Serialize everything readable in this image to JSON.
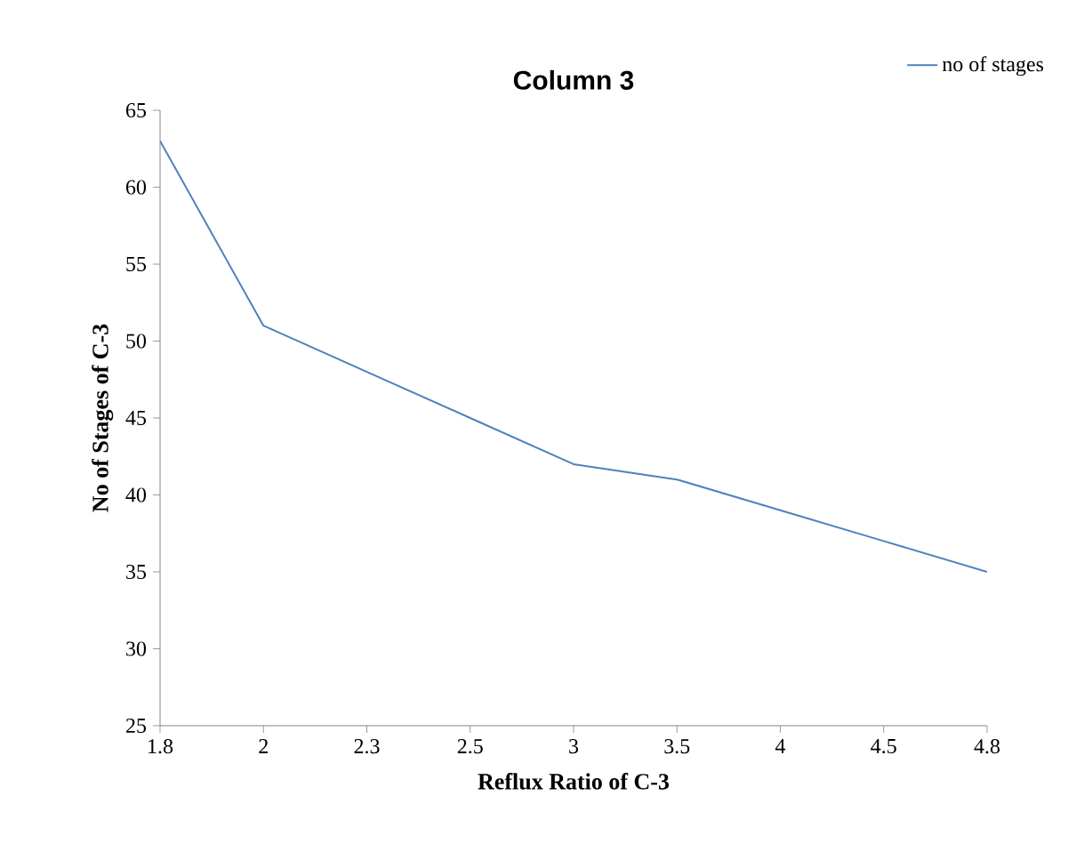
{
  "chart_data": {
    "type": "line",
    "title": "Column 3",
    "xlabel": "Reflux Ratio of C-3",
    "ylabel": "No of Stages  of C-3",
    "categories": [
      "1.8",
      "2",
      "2.3",
      "2.5",
      "3",
      "3.5",
      "4",
      "4.5",
      "4.8"
    ],
    "series": [
      {
        "name": "no of stages",
        "color": "#4f81bd",
        "values": [
          63,
          51,
          48,
          45,
          42,
          41,
          39,
          37,
          35
        ]
      }
    ],
    "ylim": [
      25,
      65
    ],
    "yticks": [
      25,
      30,
      35,
      40,
      45,
      50,
      55,
      60,
      65
    ],
    "legend": "top right"
  }
}
